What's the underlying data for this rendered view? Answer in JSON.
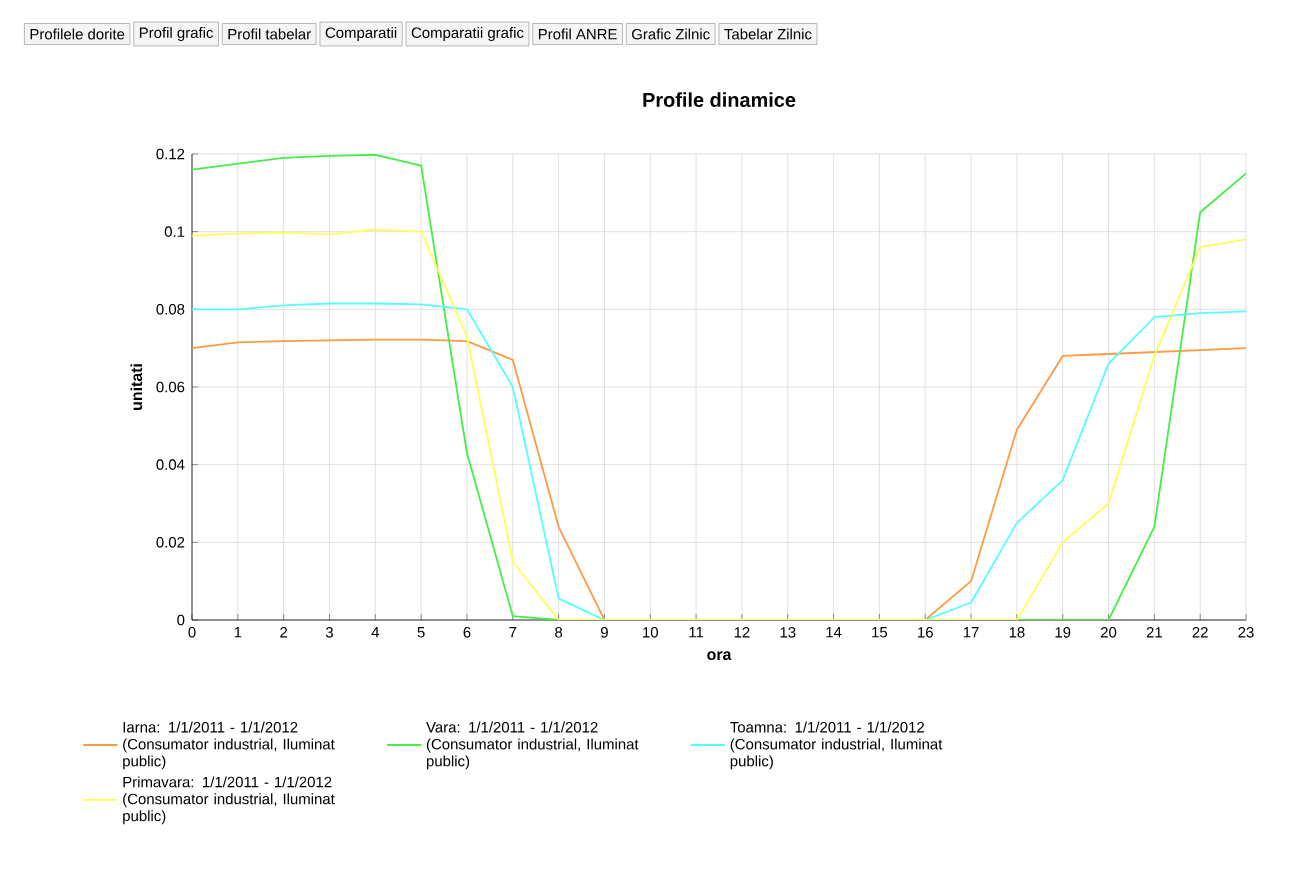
{
  "chart_data": {
    "type": "line",
    "title": "Profile dinamice",
    "xlabel": "ora",
    "ylabel": "unitati",
    "x": [
      0,
      1,
      2,
      3,
      4,
      5,
      6,
      7,
      8,
      9,
      10,
      11,
      12,
      13,
      14,
      15,
      16,
      17,
      18,
      19,
      20,
      21,
      22,
      23
    ],
    "xlim": [
      0,
      23
    ],
    "xticks": [
      0,
      1,
      2,
      3,
      4,
      5,
      6,
      7,
      8,
      9,
      10,
      11,
      12,
      13,
      14,
      15,
      16,
      17,
      18,
      19,
      20,
      21,
      22,
      23
    ],
    "ylim": [
      0,
      0.12
    ],
    "yticks": [
      0,
      0.02,
      0.04,
      0.06,
      0.08,
      0.1,
      0.12
    ],
    "grid": true,
    "legend": "bottom",
    "series": [
      {
        "name": "Iarna: 1/1/2011 - 1/1/2012 (Consumator industrial, Iluminat public)",
        "color": "#ff9944",
        "values": [
          0.07,
          0.0715,
          0.0718,
          0.072,
          0.0722,
          0.0722,
          0.0718,
          0.067,
          0.024,
          0,
          0,
          0,
          0,
          0,
          0,
          0,
          0,
          0.01,
          0.049,
          0.068,
          0.0685,
          0.069,
          0.0695,
          0.07
        ]
      },
      {
        "name": "Vara: 1/1/2011 - 1/1/2012 (Consumator industrial, Iluminat public)",
        "color": "#44ee44",
        "values": [
          0.116,
          0.1175,
          0.119,
          0.1195,
          0.1198,
          0.117,
          0.043,
          0.001,
          0,
          0,
          0,
          0,
          0,
          0,
          0,
          0,
          0,
          0,
          0,
          0,
          0,
          0.024,
          0.105,
          0.115
        ]
      },
      {
        "name": "Toamna: 1/1/2011 - 1/1/2012 (Consumator industrial, Iluminat public)",
        "color": "#55ffff",
        "values": [
          0.08,
          0.08,
          0.081,
          0.0815,
          0.0815,
          0.0813,
          0.08,
          0.06,
          0.0055,
          0,
          0,
          0,
          0,
          0,
          0,
          0,
          0,
          0.0045,
          0.025,
          0.036,
          0.066,
          0.078,
          0.079,
          0.0795
        ]
      },
      {
        "name": "Primavara: 1/1/2011 - 1/1/2012 (Consumator industrial, Iluminat public)",
        "color": "#ffff55",
        "values": [
          0.099,
          0.0995,
          0.0998,
          0.0993,
          0.1005,
          0.1,
          0.073,
          0.015,
          0,
          0,
          0,
          0,
          0,
          0,
          0,
          0,
          0,
          0,
          0,
          0.02,
          0.03,
          0.068,
          0.096,
          0.098
        ]
      }
    ],
    "annotations": [
      "Profilele dorite",
      "Profil grafic",
      "Profil tabelar",
      "Comparatii",
      "Comparatii grafic",
      "Profil ANRE",
      "Grafic Zilnic",
      "Tabelar Zilnic"
    ]
  }
}
